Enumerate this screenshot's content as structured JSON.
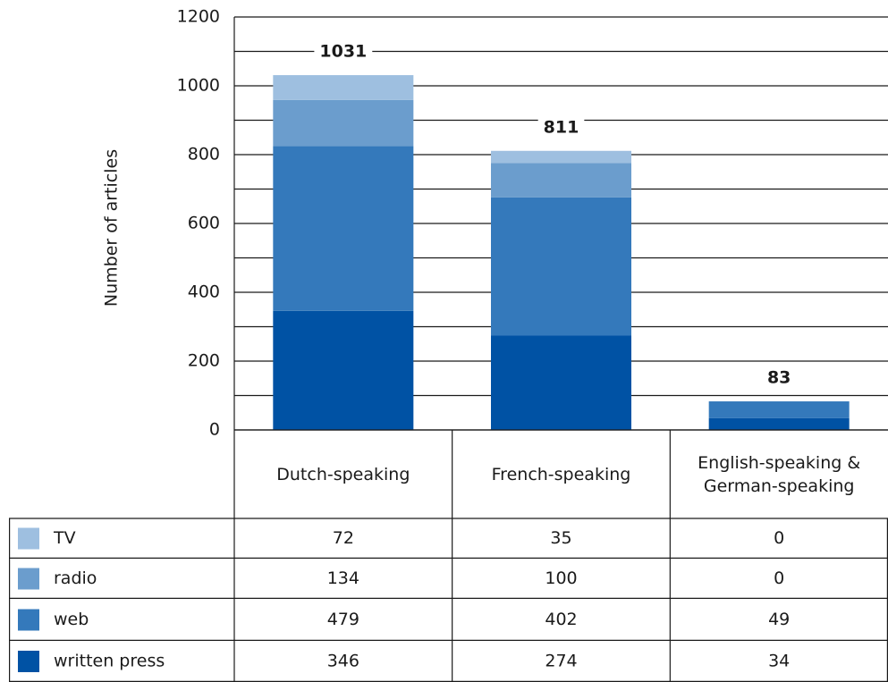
{
  "chart_data": {
    "type": "stacked_bar",
    "y_label": "Number of articles",
    "categories": [
      "Dutch-speaking",
      "French-speaking",
      "English-speaking & German-speaking"
    ],
    "series": [
      {
        "name": "written press",
        "color": "#0052a4",
        "values": [
          346,
          274,
          34
        ]
      },
      {
        "name": "web",
        "color": "#3479bb",
        "values": [
          479,
          402,
          49
        ]
      },
      {
        "name": "radio",
        "color": "#6b9dcd",
        "values": [
          134,
          100,
          0
        ]
      },
      {
        "name": "TV",
        "color": "#9ebfe0",
        "values": [
          72,
          35,
          0
        ]
      }
    ],
    "total_labels": [
      1031,
      811,
      83
    ],
    "ylim": [
      0,
      1200
    ],
    "yticks": [
      0,
      200,
      400,
      600,
      800,
      1000,
      1200
    ],
    "minor_yticks": [
      100,
      300,
      500,
      700,
      900,
      1100
    ],
    "grid": true
  }
}
